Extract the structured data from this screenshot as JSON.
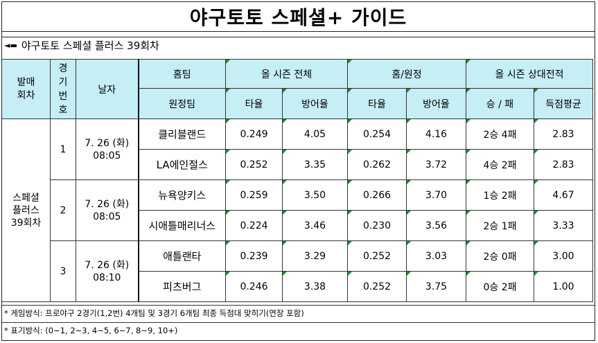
{
  "title": "야구토토 스페셜+ 가이드",
  "subtitle": "야구토토 스페셜 플러스 39회차",
  "header": {
    "issue": "발매\n회차",
    "game_no": "경\n기\n번\n호",
    "date": "날자",
    "home_team": "홈팀",
    "away_team": "원정팀",
    "season_total": "올 시즌 전체",
    "home_away": "홈/원정",
    "head_to_head": "올 시즌 상대전적",
    "avg": "타율",
    "era": "방어율",
    "avg2": "타율",
    "era2": "방어율",
    "win_loss": "승 / 패",
    "score_avg": "득점평균"
  },
  "issue_label": "스페셜\n플러스\n39회차",
  "games": [
    {
      "no": "1",
      "date": "7. 26 (화)\n08:05",
      "rows": [
        {
          "team": "클리블랜드",
          "avg": "0.249",
          "era": "4.05",
          "ha_avg": "0.254",
          "ha_era": "4.16",
          "wl": "2승 4패",
          "score": "2.83"
        },
        {
          "team": "LA에인절스",
          "avg": "0.252",
          "era": "3.35",
          "ha_avg": "0.262",
          "ha_era": "3.72",
          "wl": "4승 2패",
          "score": "2.83"
        }
      ]
    },
    {
      "no": "2",
      "date": "7. 26 (화)\n08:05",
      "rows": [
        {
          "team": "뉴욕양키스",
          "avg": "0.259",
          "era": "3.50",
          "ha_avg": "0.266",
          "ha_era": "3.70",
          "wl": "1승 2패",
          "score": "4.67"
        },
        {
          "team": "시애틀매리너스",
          "avg": "0.224",
          "era": "3.46",
          "ha_avg": "0.230",
          "ha_era": "3.56",
          "wl": "2승 1패",
          "score": "3.33"
        }
      ]
    },
    {
      "no": "3",
      "date": "7. 26 (화)\n08:10",
      "rows": [
        {
          "team": "애틀랜타",
          "avg": "0.239",
          "era": "3.29",
          "ha_avg": "0.252",
          "ha_era": "3.03",
          "wl": "2승 0패",
          "score": "3.00"
        },
        {
          "team": "피츠버그",
          "avg": "0.246",
          "era": "3.38",
          "ha_avg": "0.252",
          "ha_era": "3.75",
          "wl": "0승 2패",
          "score": "1.00"
        }
      ]
    }
  ],
  "footnotes": [
    "* 게임방식: 프로야구 2경기(1,2번) 4개팀 및 3경기 6개팀 최종 득점대 맞히기(연장 포함)",
    "* 표기방식: (0~1, 2~3, 4~5, 6~7, 8~9, 10+)"
  ]
}
